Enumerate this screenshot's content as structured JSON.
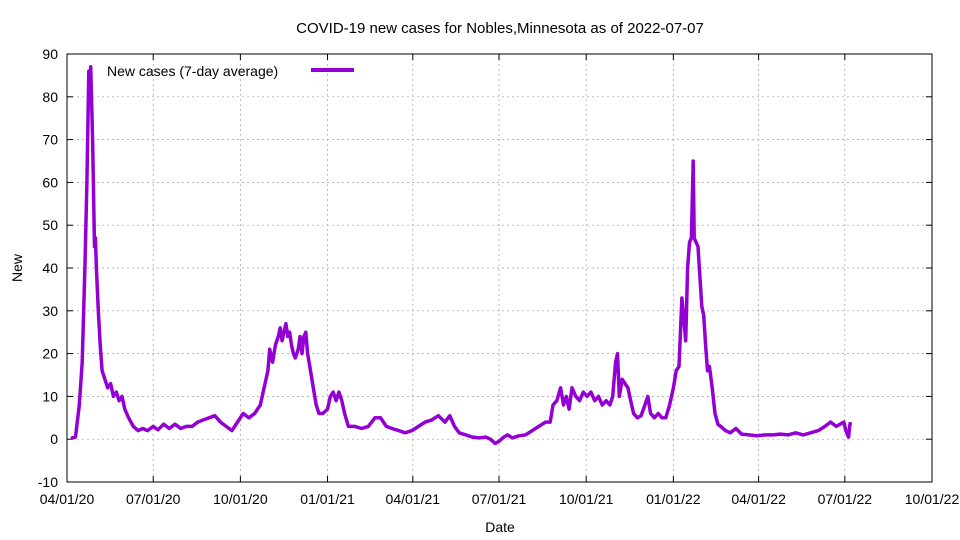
{
  "chart_data": {
    "type": "line",
    "title": "COVID-19 new cases for Nobles,Minnesota as of 2022-07-07",
    "xlabel": "Date",
    "ylabel": "New",
    "ylim": [
      -10,
      90
    ],
    "xlim": [
      "2020-04-01",
      "2022-10-01"
    ],
    "yticks": [
      -10,
      0,
      10,
      20,
      30,
      40,
      50,
      60,
      70,
      80,
      90
    ],
    "xticks": [
      {
        "date": "2020-04-01",
        "label": "04/01/20"
      },
      {
        "date": "2020-07-01",
        "label": "07/01/20"
      },
      {
        "date": "2020-10-01",
        "label": "10/01/20"
      },
      {
        "date": "2021-01-01",
        "label": "01/01/21"
      },
      {
        "date": "2021-04-01",
        "label": "04/01/21"
      },
      {
        "date": "2021-07-01",
        "label": "07/01/21"
      },
      {
        "date": "2021-10-01",
        "label": "10/01/21"
      },
      {
        "date": "2022-01-01",
        "label": "01/01/22"
      },
      {
        "date": "2022-04-01",
        "label": "04/01/22"
      },
      {
        "date": "2022-07-01",
        "label": "07/01/22"
      },
      {
        "date": "2022-10-01",
        "label": "10/01/22"
      }
    ],
    "grid": true,
    "legend_position": "top-left",
    "series": [
      {
        "name": "New cases (7-day average)",
        "color": "#9400d3",
        "points": [
          [
            "2020-04-05",
            0.2
          ],
          [
            "2020-04-10",
            0.5
          ],
          [
            "2020-04-14",
            8
          ],
          [
            "2020-04-17",
            18
          ],
          [
            "2020-04-20",
            41
          ],
          [
            "2020-04-22",
            60
          ],
          [
            "2020-04-24",
            86
          ],
          [
            "2020-04-25",
            80
          ],
          [
            "2020-04-26",
            87
          ],
          [
            "2020-04-28",
            70
          ],
          [
            "2020-04-30",
            45
          ],
          [
            "2020-05-01",
            47
          ],
          [
            "2020-05-02",
            40
          ],
          [
            "2020-05-04",
            30
          ],
          [
            "2020-05-06",
            22
          ],
          [
            "2020-05-08",
            16
          ],
          [
            "2020-05-11",
            14
          ],
          [
            "2020-05-14",
            12
          ],
          [
            "2020-05-17",
            13
          ],
          [
            "2020-05-20",
            10
          ],
          [
            "2020-05-23",
            11
          ],
          [
            "2020-05-26",
            9
          ],
          [
            "2020-05-29",
            10
          ],
          [
            "2020-06-01",
            7
          ],
          [
            "2020-06-05",
            5
          ],
          [
            "2020-06-10",
            3
          ],
          [
            "2020-06-15",
            2
          ],
          [
            "2020-06-20",
            2.5
          ],
          [
            "2020-06-25",
            2
          ],
          [
            "2020-07-01",
            3
          ],
          [
            "2020-07-06",
            2.2
          ],
          [
            "2020-07-12",
            3.5
          ],
          [
            "2020-07-18",
            2.5
          ],
          [
            "2020-07-24",
            3.5
          ],
          [
            "2020-07-30",
            2.5
          ],
          [
            "2020-08-05",
            3
          ],
          [
            "2020-08-11",
            3
          ],
          [
            "2020-08-17",
            4
          ],
          [
            "2020-08-23",
            4.5
          ],
          [
            "2020-08-29",
            5
          ],
          [
            "2020-09-04",
            5.5
          ],
          [
            "2020-09-10",
            4
          ],
          [
            "2020-09-16",
            3
          ],
          [
            "2020-09-22",
            2
          ],
          [
            "2020-09-28",
            4
          ],
          [
            "2020-10-04",
            6
          ],
          [
            "2020-10-10",
            5
          ],
          [
            "2020-10-16",
            6
          ],
          [
            "2020-10-22",
            8
          ],
          [
            "2020-10-26",
            12
          ],
          [
            "2020-10-30",
            16
          ],
          [
            "2020-11-01",
            21
          ],
          [
            "2020-11-04",
            18
          ],
          [
            "2020-11-07",
            22
          ],
          [
            "2020-11-10",
            24
          ],
          [
            "2020-11-12",
            26
          ],
          [
            "2020-11-14",
            23
          ],
          [
            "2020-11-16",
            25
          ],
          [
            "2020-11-18",
            27
          ],
          [
            "2020-11-20",
            24
          ],
          [
            "2020-11-22",
            25
          ],
          [
            "2020-11-24",
            22
          ],
          [
            "2020-11-26",
            20
          ],
          [
            "2020-11-28",
            19
          ],
          [
            "2020-12-01",
            21
          ],
          [
            "2020-12-03",
            24
          ],
          [
            "2020-12-05",
            20
          ],
          [
            "2020-12-07",
            24
          ],
          [
            "2020-12-09",
            25
          ],
          [
            "2020-12-11",
            20
          ],
          [
            "2020-12-14",
            16
          ],
          [
            "2020-12-17",
            12
          ],
          [
            "2020-12-20",
            8
          ],
          [
            "2020-12-23",
            6
          ],
          [
            "2020-12-27",
            6
          ],
          [
            "2021-01-01",
            7
          ],
          [
            "2021-01-04",
            10
          ],
          [
            "2021-01-07",
            11
          ],
          [
            "2021-01-10",
            9
          ],
          [
            "2021-01-13",
            11
          ],
          [
            "2021-01-16",
            9
          ],
          [
            "2021-01-19",
            6
          ],
          [
            "2021-01-23",
            3
          ],
          [
            "2021-01-30",
            3
          ],
          [
            "2021-02-06",
            2.5
          ],
          [
            "2021-02-13",
            3
          ],
          [
            "2021-02-20",
            5
          ],
          [
            "2021-02-26",
            5
          ],
          [
            "2021-03-04",
            3
          ],
          [
            "2021-03-10",
            2.5
          ],
          [
            "2021-03-17",
            2
          ],
          [
            "2021-03-24",
            1.5
          ],
          [
            "2021-03-31",
            2
          ],
          [
            "2021-04-07",
            3
          ],
          [
            "2021-04-14",
            4
          ],
          [
            "2021-04-21",
            4.5
          ],
          [
            "2021-04-28",
            5.5
          ],
          [
            "2021-05-05",
            4
          ],
          [
            "2021-05-10",
            5.5
          ],
          [
            "2021-05-15",
            3
          ],
          [
            "2021-05-20",
            1.5
          ],
          [
            "2021-05-27",
            1
          ],
          [
            "2021-06-03",
            0.5
          ],
          [
            "2021-06-10",
            0.3
          ],
          [
            "2021-06-17",
            0.5
          ],
          [
            "2021-06-22",
            0
          ],
          [
            "2021-06-27",
            -1
          ],
          [
            "2021-07-01",
            -0.5
          ],
          [
            "2021-07-06",
            0.5
          ],
          [
            "2021-07-10",
            1
          ],
          [
            "2021-07-15",
            0.3
          ],
          [
            "2021-07-22",
            0.8
          ],
          [
            "2021-07-29",
            1
          ],
          [
            "2021-08-05",
            2
          ],
          [
            "2021-08-12",
            3
          ],
          [
            "2021-08-19",
            4
          ],
          [
            "2021-08-24",
            4
          ],
          [
            "2021-08-27",
            8
          ],
          [
            "2021-08-31",
            9
          ],
          [
            "2021-09-04",
            12
          ],
          [
            "2021-09-07",
            8
          ],
          [
            "2021-09-10",
            10
          ],
          [
            "2021-09-13",
            7
          ],
          [
            "2021-09-16",
            12
          ],
          [
            "2021-09-20",
            10
          ],
          [
            "2021-09-24",
            9
          ],
          [
            "2021-09-28",
            11
          ],
          [
            "2021-10-02",
            10
          ],
          [
            "2021-10-06",
            11
          ],
          [
            "2021-10-10",
            9
          ],
          [
            "2021-10-14",
            10
          ],
          [
            "2021-10-18",
            8
          ],
          [
            "2021-10-22",
            9
          ],
          [
            "2021-10-26",
            8
          ],
          [
            "2021-10-29",
            10
          ],
          [
            "2021-11-01",
            18
          ],
          [
            "2021-11-03",
            20
          ],
          [
            "2021-11-05",
            10
          ],
          [
            "2021-11-08",
            14
          ],
          [
            "2021-11-11",
            13
          ],
          [
            "2021-11-14",
            12
          ],
          [
            "2021-11-17",
            9
          ],
          [
            "2021-11-20",
            6
          ],
          [
            "2021-11-24",
            5
          ],
          [
            "2021-11-28",
            5.5
          ],
          [
            "2021-12-02",
            8
          ],
          [
            "2021-12-05",
            10
          ],
          [
            "2021-12-08",
            6
          ],
          [
            "2021-12-12",
            5
          ],
          [
            "2021-12-16",
            6
          ],
          [
            "2021-12-20",
            5
          ],
          [
            "2021-12-24",
            5
          ],
          [
            "2021-12-28",
            8
          ],
          [
            "2022-01-01",
            12
          ],
          [
            "2022-01-04",
            16
          ],
          [
            "2022-01-07",
            17
          ],
          [
            "2022-01-10",
            33
          ],
          [
            "2022-01-12",
            28
          ],
          [
            "2022-01-14",
            23
          ],
          [
            "2022-01-16",
            40
          ],
          [
            "2022-01-18",
            46
          ],
          [
            "2022-01-20",
            47
          ],
          [
            "2022-01-22",
            65
          ],
          [
            "2022-01-23",
            47
          ],
          [
            "2022-01-25",
            46
          ],
          [
            "2022-01-27",
            45
          ],
          [
            "2022-01-29",
            38
          ],
          [
            "2022-01-31",
            31
          ],
          [
            "2022-02-02",
            29
          ],
          [
            "2022-02-04",
            22
          ],
          [
            "2022-02-06",
            16
          ],
          [
            "2022-02-08",
            17
          ],
          [
            "2022-02-11",
            12
          ],
          [
            "2022-02-14",
            6
          ],
          [
            "2022-02-17",
            3.5
          ],
          [
            "2022-02-20",
            3
          ],
          [
            "2022-02-25",
            2
          ],
          [
            "2022-03-02",
            1.5
          ],
          [
            "2022-03-08",
            2.5
          ],
          [
            "2022-03-14",
            1.2
          ],
          [
            "2022-03-22",
            1
          ],
          [
            "2022-03-30",
            0.8
          ],
          [
            "2022-04-08",
            1
          ],
          [
            "2022-04-16",
            1
          ],
          [
            "2022-04-24",
            1.2
          ],
          [
            "2022-05-02",
            1
          ],
          [
            "2022-05-10",
            1.5
          ],
          [
            "2022-05-18",
            1
          ],
          [
            "2022-05-26",
            1.5
          ],
          [
            "2022-06-03",
            2
          ],
          [
            "2022-06-10",
            3
          ],
          [
            "2022-06-16",
            4
          ],
          [
            "2022-06-22",
            3
          ],
          [
            "2022-06-26",
            3.5
          ],
          [
            "2022-06-30",
            4
          ],
          [
            "2022-07-02",
            2
          ],
          [
            "2022-07-05",
            0.5
          ],
          [
            "2022-07-06",
            3
          ],
          [
            "2022-07-07",
            4
          ]
        ]
      }
    ]
  }
}
